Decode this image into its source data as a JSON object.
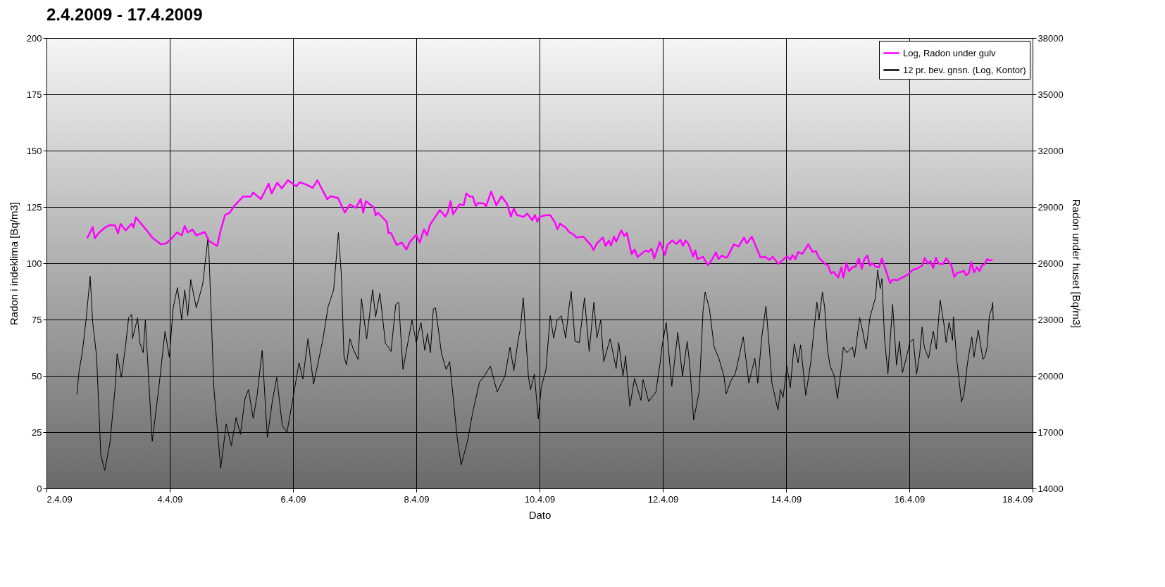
{
  "chart_data": {
    "type": "line",
    "title": "2.4.2009 - 17.4.2009",
    "xlabel": "Dato",
    "ylabel": "Radon i indeklima [Bq/m3]",
    "y2label": "Radon under huset [Bq/m3]",
    "xlim": [
      "2009-04-02",
      "2009-04-18"
    ],
    "xticks": [
      {
        "value": "2009-04-02",
        "label": "2.4.09"
      },
      {
        "value": "2009-04-04",
        "label": "4.4.09"
      },
      {
        "value": "2009-04-06",
        "label": "6.4.09"
      },
      {
        "value": "2009-04-08",
        "label": "8.4.09"
      },
      {
        "value": "2009-04-10",
        "label": "10.4.09"
      },
      {
        "value": "2009-04-12",
        "label": "12.4.09"
      },
      {
        "value": "2009-04-14",
        "label": "14.4.09"
      },
      {
        "value": "2009-04-16",
        "label": "16.4.09"
      },
      {
        "value": "2009-04-18",
        "label": "18.4.09"
      }
    ],
    "ylim": [
      0,
      200
    ],
    "yticks": [
      0,
      25,
      50,
      75,
      100,
      125,
      150,
      175,
      200
    ],
    "y2lim": [
      14000,
      38000
    ],
    "y2ticks": [
      14000,
      17000,
      20000,
      23000,
      26000,
      29000,
      32000,
      35000,
      38000
    ],
    "grid": true,
    "legend": "top right",
    "series": [
      {
        "name": "Log, Radon under gulv",
        "color": "#ff00ff",
        "axis": "y2",
        "x": [
          "2009-04-02T15:50",
          "2009-04-02T18:00",
          "2009-04-02T18:50",
          "2009-04-02T20:30",
          "2009-04-02T23:00",
          "2009-04-03T00:40",
          "2009-04-03T02:40",
          "2009-04-03T03:50",
          "2009-04-03T04:50",
          "2009-04-03T06:50",
          "2009-04-03T09:10",
          "2009-04-03T09:50",
          "2009-04-03T10:50",
          "2009-04-03T15:00",
          "2009-04-03T17:10",
          "2009-04-03T20:30",
          "2009-04-03T22:40",
          "2009-04-04T00:40",
          "2009-04-04T02:50",
          "2009-04-04T04:40",
          "2009-04-04T05:50",
          "2009-04-04T07:00",
          "2009-04-04T08:50",
          "2009-04-04T10:20",
          "2009-04-04T13:40",
          "2009-04-04T15:20",
          "2009-04-04T18:30",
          "2009-04-04T19:40",
          "2009-04-04T21:30",
          "2009-04-04T23:20",
          "2009-04-05T01:00",
          "2009-04-05T04:30",
          "2009-04-05T07:30",
          "2009-04-05T08:30",
          "2009-04-05T11:30",
          "2009-04-05T14:30",
          "2009-04-05T15:40",
          "2009-04-05T17:50",
          "2009-04-05T19:40",
          "2009-04-05T22:00",
          "2009-04-06T01:20",
          "2009-04-06T02:40",
          "2009-04-06T05:30",
          "2009-04-06T07:40",
          "2009-04-06T09:30",
          "2009-04-06T13:20",
          "2009-04-06T14:40",
          "2009-04-06T17:30",
          "2009-04-06T20:10",
          "2009-04-06T22:10",
          "2009-04-07T00:30",
          "2009-04-07T02:20",
          "2009-04-07T03:20",
          "2009-04-07T04:20",
          "2009-04-07T07:30",
          "2009-04-07T08:10",
          "2009-04-07T09:00",
          "2009-04-07T12:30",
          "2009-04-07T13:10",
          "2009-04-07T14:10",
          "2009-04-07T16:20",
          "2009-04-07T18:20",
          "2009-04-07T20:10",
          "2009-04-07T21:30",
          "2009-04-08T00:00",
          "2009-04-08T01:20",
          "2009-04-08T03:00",
          "2009-04-08T04:10",
          "2009-04-08T05:20",
          "2009-04-08T09:10",
          "2009-04-08T11:20",
          "2009-04-08T12:20",
          "2009-04-08T13:20",
          "2009-04-08T14:20",
          "2009-04-08T16:50",
          "2009-04-08T18:30",
          "2009-04-08T19:30",
          "2009-04-08T20:50",
          "2009-04-08T22:00",
          "2009-04-08T23:10",
          "2009-04-09T00:10",
          "2009-04-09T02:20",
          "2009-04-09T03:10",
          "2009-04-09T05:10",
          "2009-04-09T07:10",
          "2009-04-09T09:10",
          "2009-04-09T11:20",
          "2009-04-09T12:50",
          "2009-04-09T14:00",
          "2009-04-09T15:10",
          "2009-04-09T17:50",
          "2009-04-09T19:10",
          "2009-04-09T21:10",
          "2009-04-09T22:10",
          "2009-04-09T23:10",
          "2009-04-10T00:00",
          "2009-04-10T02:30",
          "2009-04-10T04:10",
          "2009-04-10T06:00",
          "2009-04-10T07:00",
          "2009-04-10T08:00",
          "2009-04-10T10:10",
          "2009-04-10T11:30",
          "2009-04-10T13:10",
          "2009-04-10T14:20",
          "2009-04-10T17:00",
          "2009-04-10T18:50",
          "2009-04-10T20:10",
          "2009-04-10T21:00",
          "2009-04-10T22:20",
          "2009-04-11T00:40",
          "2009-04-11T01:40",
          "2009-04-11T03:00",
          "2009-04-11T03:50",
          "2009-04-11T05:00",
          "2009-04-11T05:50",
          "2009-04-11T07:50",
          "2009-04-11T09:00",
          "2009-04-11T10:00",
          "2009-04-11T11:50",
          "2009-04-11T13:00",
          "2009-04-11T14:10",
          "2009-04-11T17:20",
          "2009-04-11T18:30",
          "2009-04-11T19:40",
          "2009-04-11T20:40",
          "2009-04-11T22:50",
          "2009-04-12T00:50",
          "2009-04-12T01:50",
          "2009-04-12T03:40",
          "2009-04-12T05:20",
          "2009-04-12T06:50",
          "2009-04-12T07:50",
          "2009-04-12T08:50",
          "2009-04-12T10:00",
          "2009-04-12T11:50",
          "2009-04-12T12:40",
          "2009-04-12T13:30",
          "2009-04-12T15:40",
          "2009-04-12T17:30",
          "2009-04-12T19:10",
          "2009-04-12T20:40",
          "2009-04-12T21:40",
          "2009-04-12T23:00",
          "2009-04-13T00:40",
          "2009-04-13T01:10",
          "2009-04-13T03:40",
          "2009-04-13T05:30",
          "2009-04-13T07:40",
          "2009-04-13T08:40",
          "2009-04-13T10:40",
          "2009-04-13T14:00",
          "2009-04-13T15:50",
          "2009-04-13T17:30",
          "2009-04-13T18:50",
          "2009-04-13T21:00",
          "2009-04-14T00:20",
          "2009-04-14T01:40",
          "2009-04-14T02:30",
          "2009-04-14T03:40",
          "2009-04-14T04:40",
          "2009-04-14T06:20",
          "2009-04-14T08:40",
          "2009-04-14T10:20",
          "2009-04-14T11:40",
          "2009-04-14T12:50",
          "2009-04-14T15:30",
          "2009-04-14T16:20",
          "2009-04-14T17:30",
          "2009-04-14T18:30",
          "2009-04-14T20:20",
          "2009-04-14T21:30",
          "2009-04-14T22:20",
          "2009-04-14T23:30",
          "2009-04-15T00:30",
          "2009-04-15T01:50",
          "2009-04-15T03:10",
          "2009-04-15T04:20",
          "2009-04-15T05:30",
          "2009-04-15T06:30",
          "2009-04-15T07:40",
          "2009-04-15T08:40",
          "2009-04-15T09:30",
          "2009-04-15T10:50",
          "2009-04-15T12:10",
          "2009-04-15T13:20",
          "2009-04-15T16:30",
          "2009-04-15T17:30",
          "2009-04-15T19:30",
          "2009-04-15T21:10",
          "2009-04-15T23:00",
          "2009-04-16T01:30",
          "2009-04-16T02:50",
          "2009-04-16T05:00",
          "2009-04-16T06:00",
          "2009-04-16T07:10",
          "2009-04-16T08:10",
          "2009-04-16T09:20",
          "2009-04-16T10:20",
          "2009-04-16T11:20",
          "2009-04-16T13:10",
          "2009-04-16T14:20",
          "2009-04-16T16:20",
          "2009-04-16T17:30",
          "2009-04-16T18:30",
          "2009-04-16T20:20",
          "2009-04-16T21:10",
          "2009-04-16T22:10",
          "2009-04-16T23:10",
          "2009-04-17T00:10",
          "2009-04-17T01:10",
          "2009-04-17T02:20",
          "2009-04-17T03:20",
          "2009-04-17T04:10",
          "2009-04-17T05:10",
          "2009-04-17T06:20",
          "2009-04-17T07:10",
          "2009-04-17T08:20"
        ],
        "values": [
          27330,
          27930,
          27330,
          27630,
          27930,
          28030,
          28020,
          27600,
          28090,
          27750,
          28110,
          27900,
          28450,
          27750,
          27370,
          27010,
          27060,
          27310,
          27640,
          27490,
          27990,
          27640,
          27800,
          27490,
          27660,
          27180,
          26920,
          27670,
          28560,
          28690,
          29030,
          29550,
          29550,
          29770,
          29410,
          30240,
          29720,
          30290,
          29990,
          30420,
          30100,
          30320,
          30170,
          30020,
          30420,
          29410,
          29570,
          29480,
          28700,
          29130,
          28950,
          29420,
          28700,
          29310,
          28970,
          28550,
          28700,
          28210,
          27610,
          27610,
          26980,
          27100,
          26730,
          27130,
          27520,
          27100,
          27810,
          27490,
          28050,
          28830,
          28490,
          28740,
          29310,
          28610,
          29130,
          29090,
          29720,
          29550,
          29550,
          29050,
          29210,
          29190,
          29030,
          29820,
          29090,
          29570,
          29170,
          28490,
          28920,
          28570,
          28470,
          28650,
          28290,
          28570,
          28210,
          28470,
          28560,
          28560,
          28170,
          27810,
          28110,
          27900,
          27660,
          27540,
          27370,
          27420,
          27150,
          26940,
          26700,
          27060,
          27370,
          26920,
          27210,
          26940,
          27420,
          27150,
          27750,
          27450,
          27610,
          26500,
          26730,
          26340,
          26680,
          26610,
          26770,
          26260,
          27130,
          26440,
          26980,
          27210,
          27030,
          27250,
          26920,
          27210,
          27030,
          26370,
          26680,
          26220,
          26340,
          25900,
          26190,
          26580,
          26220,
          26410,
          26290,
          26340,
          27010,
          26890,
          27370,
          27060,
          27420,
          26320,
          26340,
          26180,
          26340,
          25960,
          26370,
          26190,
          26440,
          26220,
          26590,
          26500,
          27010,
          26610,
          26650,
          26290,
          25930,
          25900,
          25460,
          25540,
          25240,
          25780,
          25240,
          26010,
          25580,
          25780,
          25840,
          26260,
          25700,
          26230,
          26410,
          25870,
          26010,
          25820,
          25780,
          26260,
          24940,
          25130,
          25100,
          25240,
          25360,
          25660,
          25700,
          25870,
          26290,
          25980,
          26110,
          25750,
          26290,
          25980,
          25960,
          26260,
          25900,
          25270,
          25480,
          25540,
          25600,
          25360,
          25480,
          26060,
          25510,
          25780,
          25580,
          25870,
          25930,
          26220,
          26140,
          26180
        ]
      },
      {
        "name": "12 pr. bev. gnsn. (Log, Kontor)",
        "color": "#000000",
        "axis": "y",
        "x": [
          "2009-04-02T11:50",
          "2009-04-02T12:40",
          "2009-04-02T14:00",
          "2009-04-02T15:30",
          "2009-04-02T17:00",
          "2009-04-02T18:00",
          "2009-04-02T19:30",
          "2009-04-02T21:10",
          "2009-04-02T22:40",
          "2009-04-03T00:40",
          "2009-04-03T02:50",
          "2009-04-03T03:30",
          "2009-04-03T05:10",
          "2009-04-03T06:50",
          "2009-04-03T08:00",
          "2009-04-03T09:10",
          "2009-04-03T09:30",
          "2009-04-03T11:30",
          "2009-04-03T12:20",
          "2009-04-03T13:40",
          "2009-04-03T14:30",
          "2009-04-03T17:10",
          "2009-04-03T19:40",
          "2009-04-03T22:10",
          "2009-04-03T23:50",
          "2009-04-04T01:20",
          "2009-04-04T03:00",
          "2009-04-04T04:40",
          "2009-04-04T05:50",
          "2009-04-04T07:00",
          "2009-04-04T08:10",
          "2009-04-04T10:20",
          "2009-04-04T12:50",
          "2009-04-04T14:50",
          "2009-04-04T15:20",
          "2009-04-04T17:10",
          "2009-04-04T19:50",
          "2009-04-04T22:00",
          "2009-04-05T00:00",
          "2009-04-05T01:50",
          "2009-04-05T03:30",
          "2009-04-05T05:20",
          "2009-04-05T06:40",
          "2009-04-05T08:30",
          "2009-04-05T10:00",
          "2009-04-05T12:00",
          "2009-04-05T14:00",
          "2009-04-05T16:00",
          "2009-04-05T17:40",
          "2009-04-05T19:50",
          "2009-04-05T21:40",
          "2009-04-06T00:10",
          "2009-04-06T02:20",
          "2009-04-06T03:50",
          "2009-04-06T05:50",
          "2009-04-06T08:00",
          "2009-04-06T11:40",
          "2009-04-06T13:40",
          "2009-04-06T15:50",
          "2009-04-06T17:40",
          "2009-04-06T18:50",
          "2009-04-06T19:50",
          "2009-04-06T20:50",
          "2009-04-06T22:10",
          "2009-04-06T23:30",
          "2009-04-07T01:20",
          "2009-04-07T02:40",
          "2009-04-07T04:40",
          "2009-04-07T07:00",
          "2009-04-07T08:10",
          "2009-04-07T09:50",
          "2009-04-07T12:00",
          "2009-04-07T13:10",
          "2009-04-07T14:10",
          "2009-04-07T16:00",
          "2009-04-07T17:10",
          "2009-04-07T18:50",
          "2009-04-07T21:00",
          "2009-04-07T22:20",
          "2009-04-08T00:00",
          "2009-04-08T01:50",
          "2009-04-08T03:20",
          "2009-04-08T04:20",
          "2009-04-08T05:30",
          "2009-04-08T06:40",
          "2009-04-08T07:30",
          "2009-04-08T09:50",
          "2009-04-08T11:40",
          "2009-04-08T13:00",
          "2009-04-08T16:00",
          "2009-04-08T17:30",
          "2009-04-08T19:50",
          "2009-04-08T22:00",
          "2009-04-09T00:40",
          "2009-04-09T02:10",
          "2009-04-09T04:50",
          "2009-04-09T07:30",
          "2009-04-09T10:30",
          "2009-04-09T12:30",
          "2009-04-09T14:00",
          "2009-04-09T15:30",
          "2009-04-09T16:30",
          "2009-04-09T17:40",
          "2009-04-09T19:40",
          "2009-04-09T20:30",
          "2009-04-09T22:00",
          "2009-04-09T23:30",
          "2009-04-10T00:40",
          "2009-04-10T02:30",
          "2009-04-10T04:10",
          "2009-04-10T05:30",
          "2009-04-10T06:50",
          "2009-04-10T08:30",
          "2009-04-10T10:10",
          "2009-04-10T11:30",
          "2009-04-10T12:20",
          "2009-04-10T13:50",
          "2009-04-10T15:30",
          "2009-04-10T17:30",
          "2009-04-10T19:20",
          "2009-04-10T21:10",
          "2009-04-10T22:20",
          "2009-04-10T23:50",
          "2009-04-11T01:00",
          "2009-04-11T03:30",
          "2009-04-11T05:50",
          "2009-04-11T06:50",
          "2009-04-11T08:30",
          "2009-04-11T09:30",
          "2009-04-11T11:10",
          "2009-04-11T13:00",
          "2009-04-11T15:30",
          "2009-04-11T16:20",
          "2009-04-11T18:30",
          "2009-04-11T21:20",
          "2009-04-11T22:50",
          "2009-04-11T23:40",
          "2009-04-12T01:20",
          "2009-04-12T03:30",
          "2009-04-12T05:50",
          "2009-04-12T07:40",
          "2009-04-12T09:30",
          "2009-04-12T10:30",
          "2009-04-12T12:00",
          "2009-04-12T14:10",
          "2009-04-12T15:40",
          "2009-04-12T16:30",
          "2009-04-12T18:10",
          "2009-04-12T20:00",
          "2009-04-12T21:50",
          "2009-04-12T23:50",
          "2009-04-13T00:40",
          "2009-04-13T02:30",
          "2009-04-13T04:10",
          "2009-04-13T05:30",
          "2009-04-13T07:20",
          "2009-04-13T09:30",
          "2009-04-13T11:50",
          "2009-04-13T13:00",
          "2009-04-13T14:30",
          "2009-04-13T16:10",
          "2009-04-13T17:30",
          "2009-04-13T18:30",
          "2009-04-13T20:50",
          "2009-04-13T21:50",
          "2009-04-13T22:50",
          "2009-04-14T00:20",
          "2009-04-14T01:40",
          "2009-04-14T03:10",
          "2009-04-14T04:40",
          "2009-04-14T05:40",
          "2009-04-14T07:40",
          "2009-04-14T09:40",
          "2009-04-14T10:30",
          "2009-04-14T12:00",
          "2009-04-14T12:50",
          "2009-04-14T14:10",
          "2009-04-14T15:00",
          "2009-04-14T16:10",
          "2009-04-14T17:10",
          "2009-04-14T18:50",
          "2009-04-14T20:00",
          "2009-04-14T21:30",
          "2009-04-14T22:20",
          "2009-04-14T23:40",
          "2009-04-15T01:50",
          "2009-04-15T02:40",
          "2009-04-15T04:40",
          "2009-04-15T05:50",
          "2009-04-15T07:10",
          "2009-04-15T08:40",
          "2009-04-15T09:20",
          "2009-04-15T10:50",
          "2009-04-15T11:40",
          "2009-04-15T12:40",
          "2009-04-15T13:20",
          "2009-04-15T14:20",
          "2009-04-15T15:40",
          "2009-04-15T17:30",
          "2009-04-15T19:00",
          "2009-04-15T20:10",
          "2009-04-15T21:20",
          "2009-04-15T23:00",
          "2009-04-16T00:10",
          "2009-04-16T01:30",
          "2009-04-16T02:50",
          "2009-04-16T04:00",
          "2009-04-16T05:00",
          "2009-04-16T05:50",
          "2009-04-16T07:30",
          "2009-04-16T09:20",
          "2009-04-16T10:30",
          "2009-04-16T12:00",
          "2009-04-16T13:30",
          "2009-04-16T14:20",
          "2009-04-16T15:30",
          "2009-04-16T16:50",
          "2009-04-16T17:10",
          "2009-04-16T18:30",
          "2009-04-16T20:20",
          "2009-04-16T21:20",
          "2009-04-16T22:40",
          "2009-04-17T00:20",
          "2009-04-17T01:10",
          "2009-04-17T02:50",
          "2009-04-17T04:40",
          "2009-04-17T05:30",
          "2009-04-17T06:20",
          "2009-04-17T07:10",
          "2009-04-17T08:10",
          "2009-04-17T08:30",
          "2009-04-17T08:40"
        ],
        "values": [
          41.7,
          51.8,
          60.8,
          75.8,
          94.2,
          73.8,
          58.8,
          15.0,
          8.0,
          19.9,
          45.9,
          59.8,
          49.3,
          63.8,
          75.8,
          77.3,
          66.5,
          75.8,
          64.8,
          60.3,
          74.7,
          20.9,
          43.9,
          69.8,
          58.3,
          80.2,
          89.2,
          75.0,
          88.2,
          76.7,
          92.7,
          80.2,
          90.7,
          110.6,
          102.7,
          44.8,
          9.0,
          28.6,
          18.9,
          31.5,
          24.0,
          40.0,
          43.9,
          31.1,
          41.3,
          61.3,
          22.6,
          39.1,
          49.3,
          27.8,
          25.0,
          41.3,
          55.8,
          48.6,
          66.5,
          46.3,
          66.3,
          80.7,
          88.2,
          113.6,
          94.7,
          58.8,
          54.8,
          66.5,
          61.8,
          57.3,
          84.2,
          66.3,
          88.2,
          76.2,
          86.7,
          64.3,
          62.8,
          60.8,
          81.7,
          82.7,
          52.8,
          66.5,
          74.7,
          64.8,
          73.7,
          61.3,
          68.8,
          60.3,
          79.7,
          80.2,
          59.8,
          52.8,
          56.3,
          21.9,
          10.5,
          20.4,
          33.9,
          47.4,
          49.3,
          54.3,
          42.9,
          49.8,
          62.8,
          52.3,
          64.8,
          70.8,
          84.7,
          49.8,
          43.9,
          50.8,
          30.9,
          44.8,
          52.8,
          76.7,
          66.8,
          74.7,
          76.7,
          66.8,
          80.7,
          87.5,
          65.3,
          64.8,
          84.7,
          60.8,
          82.7,
          66.8,
          74.7,
          56.3,
          66.5,
          53.3,
          64.8,
          49.8,
          58.8,
          36.4,
          48.8,
          39.1,
          48.3,
          38.6,
          42.9,
          54.8,
          62.8,
          73.7,
          45.4,
          69.3,
          49.8,
          65.3,
          54.8,
          30.4,
          42.9,
          78.7,
          87.2,
          79.7,
          62.8,
          57.8,
          49.8,
          41.9,
          47.8,
          50.8,
          57.3,
          67.3,
          46.8,
          57.8,
          46.8,
          66.8,
          81.0,
          62.3,
          46.8,
          34.8,
          43.9,
          40.4,
          54.3,
          44.8,
          64.3,
          55.8,
          63.8,
          41.3,
          56.3,
          66.3,
          82.7,
          75.0,
          87.2,
          80.7,
          61.3,
          54.3,
          49.8,
          39.9,
          53.3,
          62.8,
          60.3,
          62.8,
          58.3,
          75.8,
          69.8,
          61.8,
          75.8,
          78.7,
          84.7,
          96.9,
          88.7,
          93.2,
          66.8,
          50.8,
          81.7,
          54.8,
          65.3,
          51.4,
          58.8,
          64.8,
          66.3,
          50.8,
          59.3,
          71.7,
          62.8,
          57.8,
          69.8,
          61.8,
          83.7,
          72.8,
          64.8,
          73.8,
          65.8,
          76.2,
          56.8,
          38.4,
          42.4,
          55.8,
          67.3,
          58.3,
          70.3,
          57.3,
          58.8,
          62.8,
          76.7,
          80.2,
          82.7,
          74.7
        ]
      }
    ]
  }
}
